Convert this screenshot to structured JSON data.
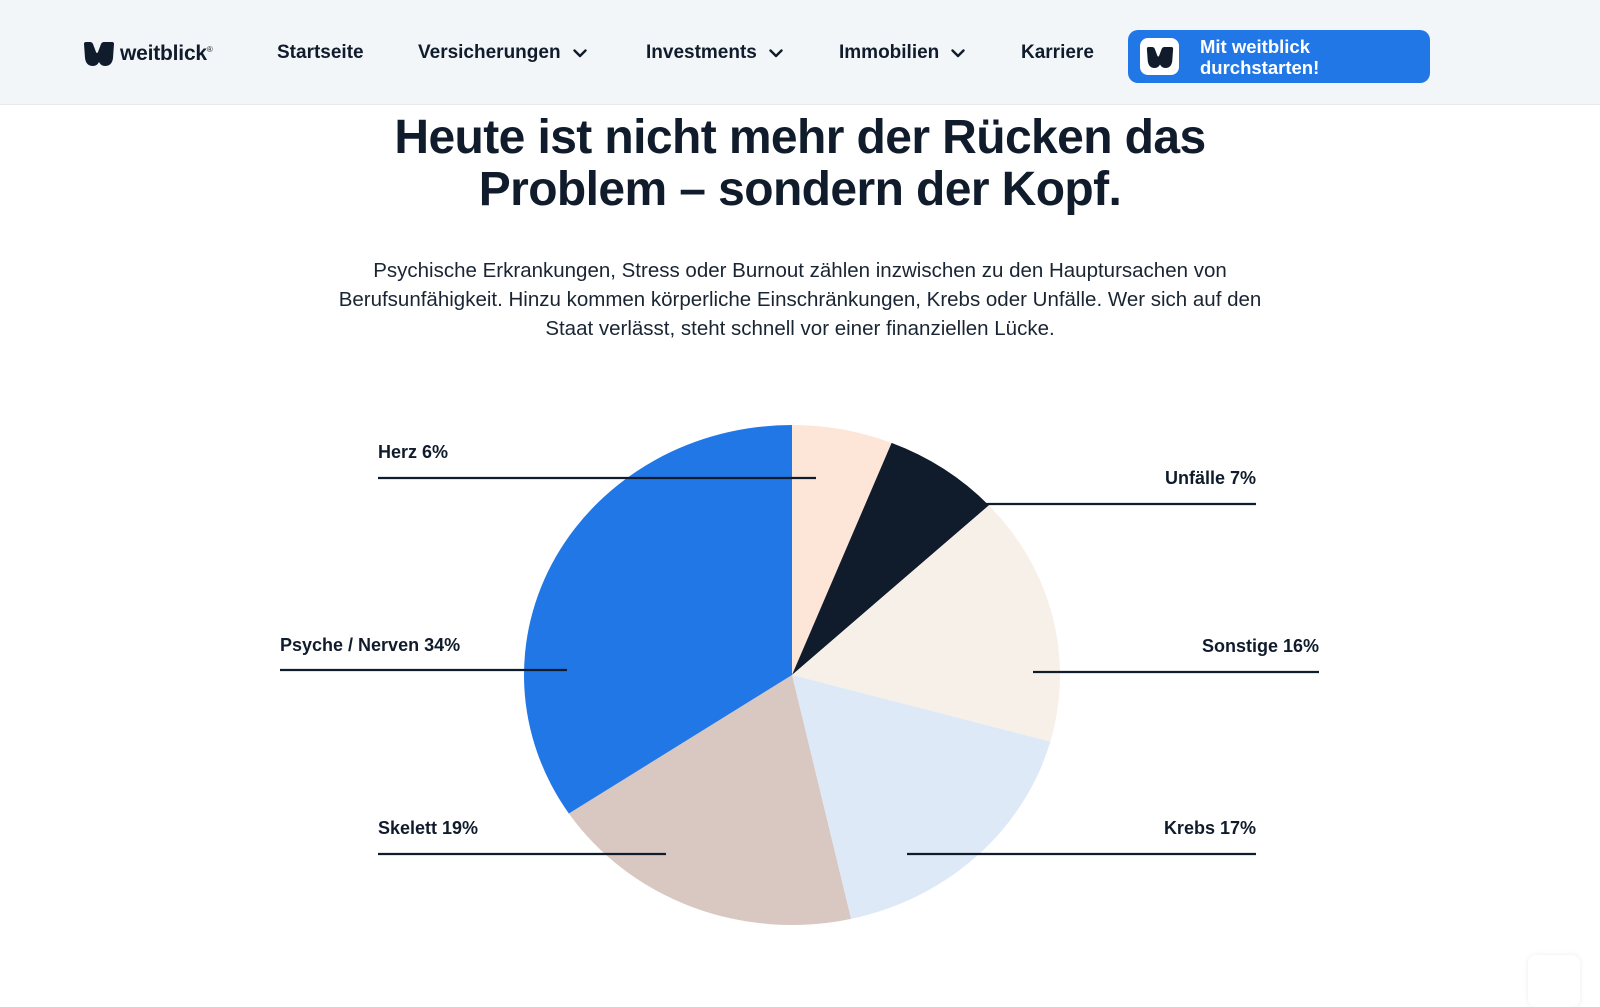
{
  "header": {
    "logo_text": "weitblick",
    "logo_mark": "®",
    "nav": [
      {
        "label": "Startseite",
        "has_dropdown": false
      },
      {
        "label": "Versicherungen",
        "has_dropdown": true
      },
      {
        "label": "Investments",
        "has_dropdown": true
      },
      {
        "label": "Immobilien",
        "has_dropdown": true
      },
      {
        "label": "Karriere",
        "has_dropdown": false
      }
    ],
    "cta": {
      "line1": "Mit weitblick",
      "line2": "durchstarten!",
      "icon": "weitblick-logo-icon"
    }
  },
  "main": {
    "headline_line1": "Heute ist nicht mehr der Rücken das",
    "headline_line2": "Problem – sondern der Kopf.",
    "lead_line1": "Psychische Erkrankungen, Stress oder Burnout zählen inzwischen zu den Hauptursachen von",
    "lead_line2": "Berufsunfähigkeit. Hinzu kommen körperliche Einschränkungen, Krebs oder Unfälle. Wer sich auf den",
    "lead_line3": "Staat verlässt, steht schnell vor einer finanziellen Lücke."
  },
  "colors": {
    "primary_blue": "#2177e6",
    "navy": "#101c2c",
    "header_bg": "#f3f6f9"
  },
  "chart_data": {
    "type": "pie",
    "title": "",
    "slices": [
      {
        "name": "Herz",
        "label": "Herz 6%",
        "value": 6,
        "color": "#fde6d8"
      },
      {
        "name": "Unfälle",
        "label": "Unfälle 7%",
        "value": 7,
        "color": "#101c2c"
      },
      {
        "name": "Sonstige",
        "label": "Sonstige 16%",
        "value": 16,
        "color": "#f7f0e9"
      },
      {
        "name": "Krebs",
        "label": "Krebs 17%",
        "value": 17,
        "color": "#dde9f6"
      },
      {
        "name": "Skelett",
        "label": "Skelett 19%",
        "value": 19,
        "color": "#d9c8c1"
      },
      {
        "name": "Psyche / Nerven",
        "label": "Psyche / Nerven 34%",
        "value": 34,
        "color": "#2177e6"
      }
    ],
    "legend": "callout-labels"
  }
}
